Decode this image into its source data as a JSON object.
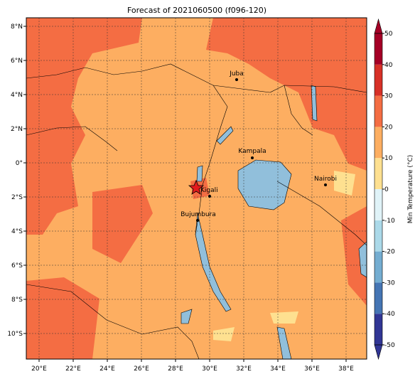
{
  "title": "Forecast of 2021060500 (f096-120)",
  "map": {
    "lon_ticks": [
      {
        "value": 20,
        "label": "20°E"
      },
      {
        "value": 22,
        "label": "22°E"
      },
      {
        "value": 24,
        "label": "24°E"
      },
      {
        "value": 26,
        "label": "26°E"
      },
      {
        "value": 28,
        "label": "28°E"
      },
      {
        "value": 30,
        "label": "30°E"
      },
      {
        "value": 32,
        "label": "32°E"
      },
      {
        "value": 34,
        "label": "34°E"
      },
      {
        "value": 36,
        "label": "36°E"
      },
      {
        "value": 38,
        "label": "38°E"
      }
    ],
    "lat_ticks": [
      {
        "value": 8,
        "label": "8°N"
      },
      {
        "value": 6,
        "label": "6°N"
      },
      {
        "value": 4,
        "label": "4°N"
      },
      {
        "value": 2,
        "label": "2°N"
      },
      {
        "value": 0,
        "label": "0°"
      },
      {
        "value": -2,
        "label": "2°S"
      },
      {
        "value": -4,
        "label": "4°S"
      },
      {
        "value": -6,
        "label": "6°S"
      },
      {
        "value": -8,
        "label": "8°S"
      },
      {
        "value": -10,
        "label": "10°S"
      }
    ],
    "cities": [
      "Juba",
      "Kampala",
      "Nairobi",
      "Kigali",
      "Bujumbura"
    ]
  },
  "colorbar": {
    "label": "Min Temperature (°C)",
    "lim": [
      -50,
      50
    ],
    "ticks": [
      -50,
      -40,
      -30,
      -20,
      -10,
      0,
      10,
      20,
      30,
      40,
      50
    ],
    "colors": [
      "#313695",
      "#4575b4",
      "#74add1",
      "#abd9e9",
      "#e0f3f8",
      "#fee090",
      "#fdae61",
      "#f46d43",
      "#d73027",
      "#a50026"
    ]
  }
}
